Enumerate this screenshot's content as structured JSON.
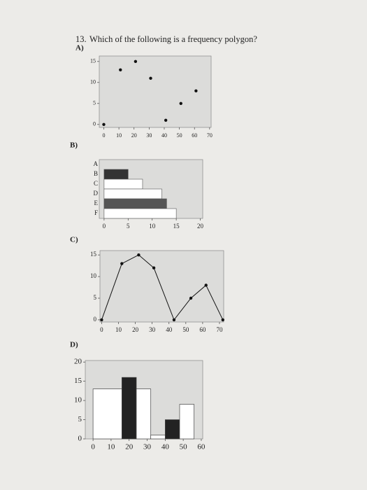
{
  "question": {
    "number": "13.",
    "text": "Which of the following is a frequency polygon?"
  },
  "option_labels": [
    "A)",
    "B)",
    "C)",
    "D)"
  ],
  "chart_data": [
    {
      "type": "scatter",
      "x": [
        0,
        11,
        21,
        31,
        41,
        51,
        61
      ],
      "y": [
        0,
        13,
        15,
        11,
        1,
        5,
        8
      ],
      "color": "#111111",
      "xlim": [
        -3,
        71
      ],
      "ylim": [
        -0.7,
        16.3
      ],
      "xticks": [
        0,
        10,
        20,
        30,
        40,
        50,
        60,
        70
      ],
      "yticks": [
        0,
        5,
        10,
        15
      ]
    },
    {
      "type": "bar",
      "orientation": "horizontal",
      "categories": [
        "A",
        "B",
        "C",
        "D",
        "E",
        "F"
      ],
      "values": [
        0,
        5,
        8,
        12,
        13,
        15
      ],
      "colors": [
        "#ffffff",
        "#333333",
        "#ffffff",
        "#ffffff",
        "#555555",
        "#ffffff"
      ],
      "xlim": [
        -1,
        20.5
      ],
      "xticks": [
        0,
        5,
        10,
        15,
        20
      ]
    },
    {
      "type": "line",
      "x": [
        0,
        12,
        22,
        31,
        43,
        53,
        62,
        72
      ],
      "y": [
        0,
        13,
        15,
        12,
        0,
        5,
        8,
        0
      ],
      "color": "#111111",
      "xlim": [
        -1,
        72.5
      ],
      "ylim": [
        -0.5,
        16
      ],
      "xticks": [
        0,
        10,
        20,
        30,
        40,
        50,
        60,
        70
      ],
      "yticks": [
        0,
        5,
        10,
        15
      ]
    },
    {
      "type": "histogram",
      "bins": [
        0,
        16,
        24,
        32,
        40,
        48,
        56
      ],
      "counts": [
        13,
        16,
        13,
        1,
        5,
        9
      ],
      "colors": [
        "#ffffff",
        "#222222",
        "#ffffff",
        "#ffffff",
        "#222222",
        "#ffffff"
      ],
      "xlim": [
        -4.3,
        60.8
      ],
      "ylim": [
        0,
        20.4
      ],
      "xticks": [
        0,
        10,
        20,
        30,
        40,
        50,
        60
      ],
      "yticks": [
        0,
        5,
        10,
        15,
        20
      ]
    }
  ]
}
